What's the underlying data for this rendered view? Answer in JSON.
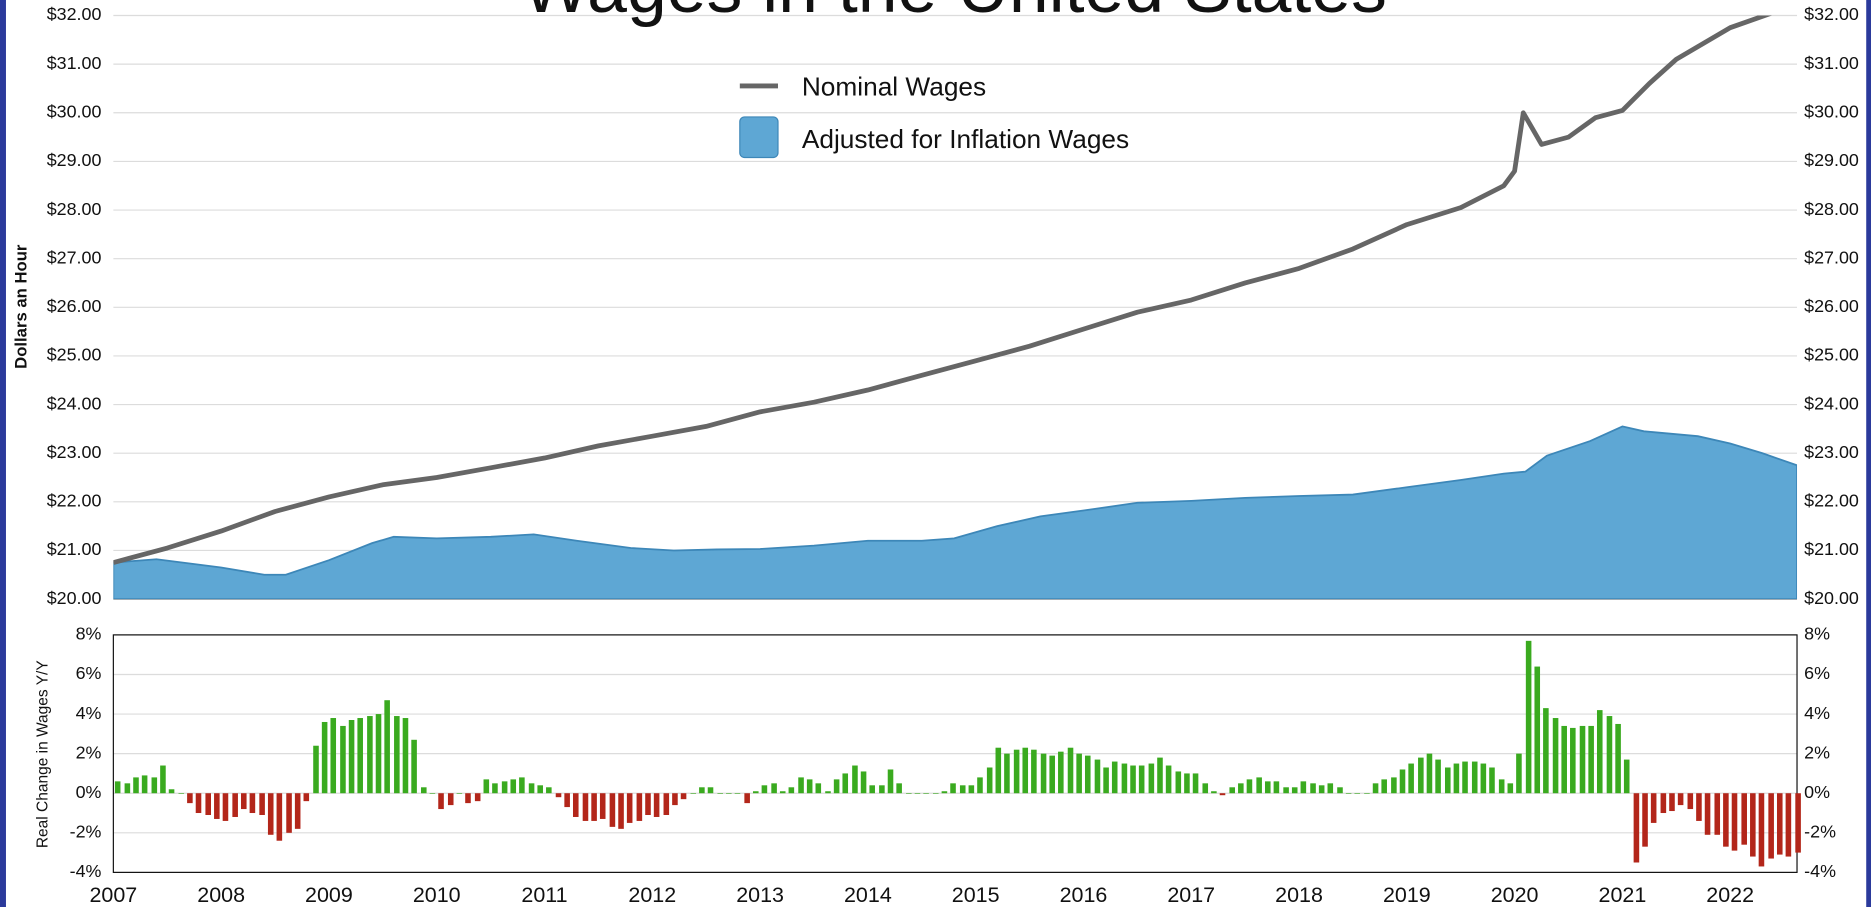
{
  "chart_data": [
    {
      "type": "line",
      "title": "Wages in the United States",
      "ylabel": "Dollars an Hour",
      "xlim": [
        2007,
        2022.62
      ],
      "ylim": [
        20,
        32
      ],
      "yticks": [
        {
          "value": 20,
          "label": "$20.00"
        },
        {
          "value": 21,
          "label": "$21.00"
        },
        {
          "value": 22,
          "label": "$22.00"
        },
        {
          "value": 23,
          "label": "$23.00"
        },
        {
          "value": 24,
          "label": "$24.00"
        },
        {
          "value": 25,
          "label": "$25.00"
        },
        {
          "value": 26,
          "label": "$26.00"
        },
        {
          "value": 27,
          "label": "$27.00"
        },
        {
          "value": 28,
          "label": "$28.00"
        },
        {
          "value": 29,
          "label": "$29.00"
        },
        {
          "value": 30,
          "label": "$30.00"
        },
        {
          "value": 31,
          "label": "$31.00"
        },
        {
          "value": 32,
          "label": "$32.00"
        }
      ],
      "grid": true,
      "series": [
        {
          "name": "Nominal Wages",
          "type": "line",
          "color": "#666666",
          "x": [
            2007.0,
            2007.5,
            2008.0,
            2008.5,
            2009.0,
            2009.5,
            2010.0,
            2010.5,
            2011.0,
            2011.5,
            2012.0,
            2012.5,
            2013.0,
            2013.5,
            2014.0,
            2014.5,
            2015.0,
            2015.5,
            2016.0,
            2016.5,
            2017.0,
            2017.5,
            2018.0,
            2018.5,
            2019.0,
            2019.5,
            2019.9,
            2020.0,
            2020.08,
            2020.25,
            2020.5,
            2020.75,
            2021.0,
            2021.25,
            2021.5,
            2022.0,
            2022.45,
            2022.62
          ],
          "values": [
            20.75,
            21.05,
            21.4,
            21.8,
            22.1,
            22.35,
            22.5,
            22.7,
            22.9,
            23.15,
            23.35,
            23.55,
            23.85,
            24.05,
            24.3,
            24.6,
            24.9,
            25.2,
            25.55,
            25.9,
            26.15,
            26.5,
            26.8,
            27.2,
            27.7,
            28.05,
            28.5,
            28.8,
            30.0,
            29.35,
            29.5,
            29.9,
            30.05,
            30.6,
            31.1,
            31.75,
            32.1,
            32.35
          ]
        },
        {
          "name": "Adjusted for Inflation Wages",
          "type": "area",
          "color": "#5ea7d4",
          "x": [
            2007.0,
            2007.4,
            2008.0,
            2008.4,
            2008.6,
            2009.0,
            2009.4,
            2009.6,
            2010.0,
            2010.5,
            2010.9,
            2011.3,
            2011.8,
            2012.2,
            2012.6,
            2013.0,
            2013.5,
            2014.0,
            2014.5,
            2014.8,
            2015.2,
            2015.6,
            2016.0,
            2016.5,
            2017.0,
            2017.5,
            2018.0,
            2018.5,
            2019.0,
            2019.5,
            2019.9,
            2020.1,
            2020.3,
            2020.7,
            2021.0,
            2021.2,
            2021.7,
            2022.0,
            2022.3,
            2022.62
          ],
          "values": [
            20.75,
            20.82,
            20.65,
            20.5,
            20.5,
            20.8,
            21.15,
            21.28,
            21.25,
            21.28,
            21.33,
            21.2,
            21.05,
            21.0,
            21.02,
            21.03,
            21.1,
            21.2,
            21.2,
            21.25,
            21.5,
            21.7,
            21.82,
            21.98,
            22.02,
            22.08,
            22.12,
            22.15,
            22.3,
            22.45,
            22.58,
            22.62,
            22.95,
            23.25,
            23.55,
            23.45,
            23.35,
            23.2,
            23.0,
            22.75
          ]
        }
      ]
    },
    {
      "type": "bar",
      "ylabel": "Real Change in Wages Y/Y",
      "xlim": [
        2007,
        2022.62
      ],
      "ylim": [
        -4,
        8
      ],
      "xticks": [
        2007,
        2008,
        2009,
        2010,
        2011,
        2012,
        2013,
        2014,
        2015,
        2016,
        2017,
        2018,
        2019,
        2020,
        2021,
        2022
      ],
      "yticks": [
        {
          "value": -4,
          "label": "-4%"
        },
        {
          "value": -2,
          "label": "-2%"
        },
        {
          "value": 0,
          "label": "0%"
        },
        {
          "value": 2,
          "label": "2%"
        },
        {
          "value": 4,
          "label": "4%"
        },
        {
          "value": 6,
          "label": "6%"
        },
        {
          "value": 8,
          "label": "8%"
        }
      ],
      "grid": true,
      "color": "#3aaa1f",
      "negative_color": "#b3261a",
      "x": [
        2007.04,
        2007.13,
        2007.21,
        2007.29,
        2007.38,
        2007.46,
        2007.54,
        2007.63,
        2007.71,
        2007.79,
        2007.88,
        2007.96,
        2008.04,
        2008.13,
        2008.21,
        2008.29,
        2008.38,
        2008.46,
        2008.54,
        2008.63,
        2008.71,
        2008.79,
        2008.88,
        2008.96,
        2009.04,
        2009.13,
        2009.21,
        2009.29,
        2009.38,
        2009.46,
        2009.54,
        2009.63,
        2009.71,
        2009.79,
        2009.88,
        2009.96,
        2010.04,
        2010.13,
        2010.21,
        2010.29,
        2010.38,
        2010.46,
        2010.54,
        2010.63,
        2010.71,
        2010.79,
        2010.88,
        2010.96,
        2011.04,
        2011.13,
        2011.21,
        2011.29,
        2011.38,
        2011.46,
        2011.54,
        2011.63,
        2011.71,
        2011.79,
        2011.88,
        2011.96,
        2012.04,
        2012.13,
        2012.21,
        2012.29,
        2012.38,
        2012.46,
        2012.54,
        2012.63,
        2012.71,
        2012.79,
        2012.88,
        2012.96,
        2013.04,
        2013.13,
        2013.21,
        2013.29,
        2013.38,
        2013.46,
        2013.54,
        2013.63,
        2013.71,
        2013.79,
        2013.88,
        2013.96,
        2014.04,
        2014.13,
        2014.21,
        2014.29,
        2014.38,
        2014.46,
        2014.54,
        2014.63,
        2014.71,
        2014.79,
        2014.88,
        2014.96,
        2015.04,
        2015.13,
        2015.21,
        2015.29,
        2015.38,
        2015.46,
        2015.54,
        2015.63,
        2015.71,
        2015.79,
        2015.88,
        2015.96,
        2016.04,
        2016.13,
        2016.21,
        2016.29,
        2016.38,
        2016.46,
        2016.54,
        2016.63,
        2016.71,
        2016.79,
        2016.88,
        2016.96,
        2017.04,
        2017.13,
        2017.21,
        2017.29,
        2017.38,
        2017.46,
        2017.54,
        2017.63,
        2017.71,
        2017.79,
        2017.88,
        2017.96,
        2018.04,
        2018.13,
        2018.21,
        2018.29,
        2018.38,
        2018.46,
        2018.54,
        2018.63,
        2018.71,
        2018.79,
        2018.88,
        2018.96,
        2019.04,
        2019.13,
        2019.21,
        2019.29,
        2019.38,
        2019.46,
        2019.54,
        2019.63,
        2019.71,
        2019.79,
        2019.88,
        2019.96,
        2020.04,
        2020.13,
        2020.21,
        2020.29,
        2020.38,
        2020.46,
        2020.54,
        2020.63,
        2020.71,
        2020.79,
        2020.88,
        2020.96,
        2021.04,
        2021.13,
        2021.21,
        2021.29,
        2021.38,
        2021.46,
        2021.54,
        2021.63,
        2021.71,
        2021.79,
        2021.88,
        2021.96,
        2022.04,
        2022.13,
        2022.21,
        2022.29,
        2022.38,
        2022.46,
        2022.54,
        2022.63
      ],
      "values": [
        0.6,
        0.5,
        0.8,
        0.9,
        0.8,
        1.4,
        0.2,
        0,
        -0.5,
        -1.0,
        -1.1,
        -1.3,
        -1.4,
        -1.2,
        -0.8,
        -1.0,
        -1.1,
        -2.1,
        -2.4,
        -2.0,
        -1.8,
        -0.4,
        2.4,
        3.6,
        3.8,
        3.4,
        3.7,
        3.8,
        3.9,
        4.0,
        4.7,
        3.9,
        3.8,
        2.7,
        0.3,
        0,
        -0.8,
        -0.6,
        0,
        -0.5,
        -0.4,
        0.7,
        0.5,
        0.6,
        0.7,
        0.8,
        0.5,
        0.4,
        0.3,
        -0.2,
        -0.7,
        -1.2,
        -1.4,
        -1.4,
        -1.3,
        -1.7,
        -1.8,
        -1.5,
        -1.4,
        -1.1,
        -1.2,
        -1.1,
        -0.6,
        -0.3,
        0,
        0.3,
        0.3,
        0,
        0,
        0,
        -0.5,
        0.1,
        0.4,
        0.5,
        0.1,
        0.3,
        0.8,
        0.7,
        0.5,
        0.1,
        0.7,
        1.0,
        1.4,
        1.1,
        0.4,
        0.4,
        1.2,
        0.5,
        0,
        0,
        0,
        0,
        0.1,
        0.5,
        0.4,
        0.4,
        0.8,
        1.3,
        2.3,
        2.0,
        2.2,
        2.3,
        2.2,
        2.0,
        1.9,
        2.1,
        2.3,
        2.0,
        1.9,
        1.7,
        1.3,
        1.6,
        1.5,
        1.4,
        1.4,
        1.5,
        1.8,
        1.4,
        1.1,
        1.0,
        1.0,
        0.5,
        0.1,
        -0.1,
        0.3,
        0.5,
        0.7,
        0.8,
        0.6,
        0.6,
        0.3,
        0.3,
        0.6,
        0.5,
        0.4,
        0.5,
        0.3,
        0,
        0,
        0,
        0.5,
        0.7,
        0.8,
        1.2,
        1.5,
        1.8,
        2.0,
        1.7,
        1.3,
        1.5,
        1.6,
        1.6,
        1.5,
        1.3,
        0.7,
        0.5,
        2.0,
        7.7,
        6.4,
        4.3,
        3.8,
        3.4,
        3.3,
        3.4,
        3.4,
        4.2,
        3.9,
        3.5,
        1.7,
        -3.5,
        -2.7,
        -1.5,
        -1.0,
        -0.9,
        -0.6,
        -0.8,
        -1.4,
        -2.1,
        -2.1,
        -2.7,
        -2.9,
        -2.6,
        -3.2,
        -3.7,
        -3.3,
        -3.1,
        -3.2,
        -3.0
      ]
    }
  ]
}
